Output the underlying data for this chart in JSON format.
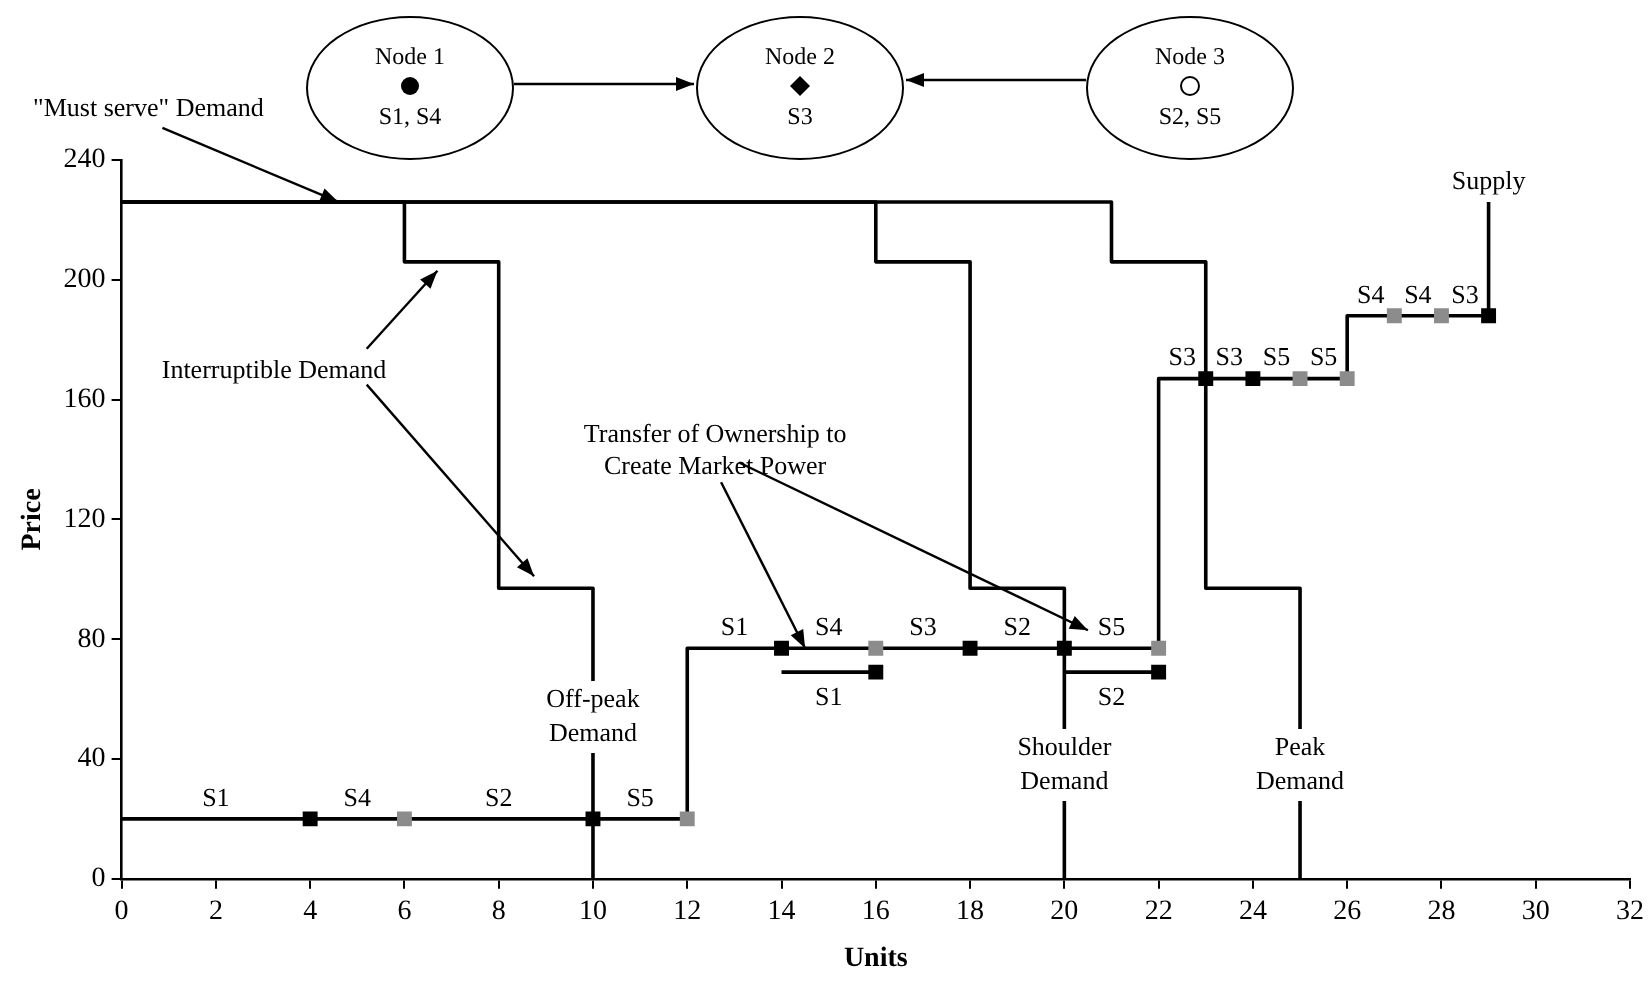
{
  "chart_data": {
    "type": "line",
    "xlabel": "Units",
    "ylabel": "Price",
    "xlim": [
      0,
      32
    ],
    "xticks": [
      0,
      2,
      4,
      6,
      8,
      10,
      12,
      14,
      16,
      18,
      20,
      22,
      24,
      26,
      28,
      30,
      32
    ],
    "ylim": [
      0,
      240
    ],
    "yticks": [
      0,
      40,
      80,
      120,
      160,
      200,
      240
    ],
    "legend": false,
    "series": [
      {
        "type": "line",
        "marker": "none",
        "color": "#000000",
        "x": [
          0,
          6,
          6,
          8,
          8,
          10,
          10
        ],
        "values": [
          226,
          226,
          206,
          206,
          97,
          97,
          0
        ]
      },
      {
        "type": "line",
        "marker": "none",
        "color": "#000000",
        "x": [
          0,
          16,
          16,
          18,
          18,
          20,
          20
        ],
        "values": [
          226,
          226,
          206,
          206,
          97,
          97,
          0
        ]
      },
      {
        "type": "line",
        "marker": "none",
        "color": "#000000",
        "x": [
          0,
          21,
          21,
          23,
          23,
          25,
          25
        ],
        "values": [
          226,
          226,
          206,
          206,
          97,
          97,
          0
        ]
      },
      {
        "type": "step",
        "marker": "square",
        "color": "#000000",
        "x": [
          0,
          4,
          6,
          10,
          12,
          14,
          16,
          18,
          20,
          22,
          23,
          24,
          25,
          26,
          27,
          28,
          29
        ],
        "values": [
          20,
          20,
          20,
          20,
          20,
          77,
          77,
          77,
          77,
          77,
          167,
          167,
          167,
          167,
          188,
          188,
          188
        ],
        "colors": [
          null,
          "#000000",
          "#8c8c8c",
          "#000000",
          "#8c8c8c",
          "#000000",
          "#8c8c8c",
          "#000000",
          "#000000",
          "#8c8c8c",
          "#000000",
          "#000000",
          "#8c8c8c",
          "#8c8c8c",
          "#8c8c8c",
          "#8c8c8c",
          "#000000"
        ]
      },
      {
        "type": "line",
        "marker": "none",
        "color": "#000000",
        "x": [
          29,
          29
        ],
        "values": [
          188,
          226
        ]
      },
      {
        "type": "line",
        "marker": "square",
        "color": "#000000",
        "x": [
          14,
          16
        ],
        "values": [
          69,
          69
        ],
        "colors": [
          null,
          "#000000"
        ]
      },
      {
        "type": "line",
        "marker": "square",
        "color": "#000000",
        "x": [
          20,
          22
        ],
        "values": [
          69,
          69
        ],
        "colors": [
          null,
          "#000000"
        ]
      }
    ],
    "annotations": [
      "Node 1",
      "S1, S4",
      "Node 2",
      "S3",
      "Node 3",
      "S2, S5",
      "Interruptible Demand",
      {
        "text": "\"Must serve\" Demand",
        "x": 4.6,
        "y": 226
      },
      {
        "text": "Transfer of Ownership to\nCreate Market Power",
        "x": 14.5,
        "y": 77
      },
      {
        "text": "Off-peak\nDemand",
        "x": 10,
        "y": 54
      },
      {
        "text": "Shoulder\nDemand",
        "x": 20,
        "y": 38
      },
      {
        "text": "Peak\nDemand",
        "x": 25,
        "y": 38
      },
      {
        "text": "Supply",
        "x": 29,
        "y": 226
      },
      {
        "text": "S1",
        "x": 2,
        "y": 20
      },
      {
        "text": "S4",
        "x": 5,
        "y": 20
      },
      {
        "text": "S2",
        "x": 8,
        "y": 20
      },
      {
        "text": "S5",
        "x": 11,
        "y": 20
      },
      {
        "text": "S1",
        "x": 13,
        "y": 77
      },
      {
        "text": "S4",
        "x": 15,
        "y": 77
      },
      {
        "text": "S3",
        "x": 17,
        "y": 77
      },
      {
        "text": "S2",
        "x": 19,
        "y": 77
      },
      {
        "text": "S5",
        "x": 21,
        "y": 77
      },
      {
        "text": "S1",
        "x": 15,
        "y": 69
      },
      {
        "text": "S2",
        "x": 21,
        "y": 69
      },
      {
        "text": "S3",
        "x": 22.5,
        "y": 167
      },
      {
        "text": "S3",
        "x": 23.5,
        "y": 167
      },
      {
        "text": "S5",
        "x": 24.5,
        "y": 167
      },
      {
        "text": "S5",
        "x": 25.5,
        "y": 167
      },
      {
        "text": "S4",
        "x": 26.5,
        "y": 188
      },
      {
        "text": "S4",
        "x": 27.5,
        "y": 188
      },
      {
        "text": "S3",
        "x": 28.5,
        "y": 188
      }
    ]
  }
}
